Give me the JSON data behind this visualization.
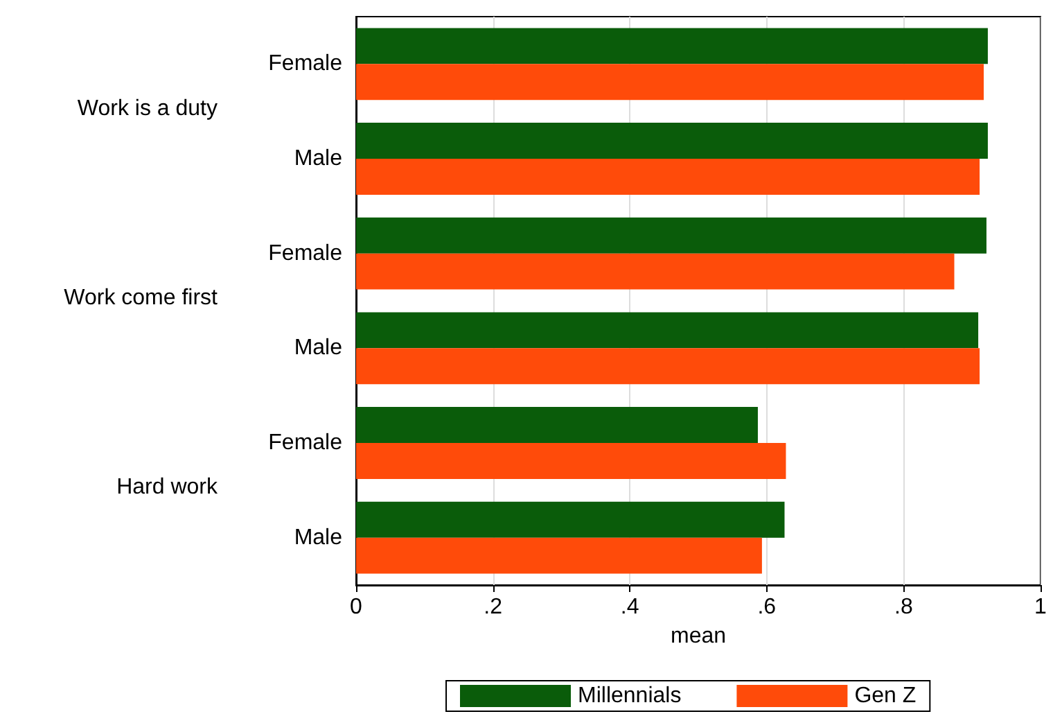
{
  "chart_data": {
    "type": "bar",
    "orientation": "horizontal",
    "xlabel": "mean",
    "categories": [
      "Female",
      "Male",
      "Female",
      "Male",
      "Female",
      "Male"
    ],
    "annotations": [
      "Work is a duty",
      "Work come first",
      "Hard work"
    ],
    "series": [
      {
        "name": "Millennials",
        "color": "#0a5c0a",
        "values": [
          0.923,
          0.923,
          0.921,
          0.909,
          0.587,
          0.626
        ]
      },
      {
        "name": "Gen Z",
        "color": "#ff4b0a",
        "values": [
          0.917,
          0.911,
          0.874,
          0.911,
          0.628,
          0.593
        ]
      }
    ],
    "xlim": [
      0,
      1
    ],
    "xticks": [
      0,
      {
        "value": 0.2,
        "label": ".2"
      },
      {
        "value": 0.4,
        "label": ".4"
      },
      {
        "value": 0.6,
        "label": ".6"
      },
      {
        "value": 0.8,
        "label": ".8"
      },
      1
    ],
    "grid": "x",
    "legend": "bottom"
  }
}
